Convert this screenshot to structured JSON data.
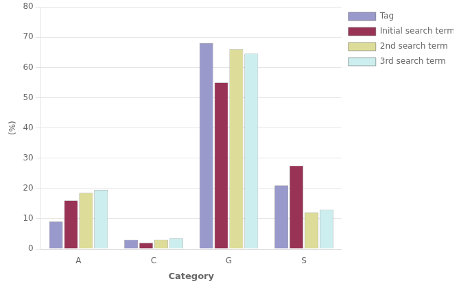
{
  "chart_data": {
    "type": "bar",
    "categories": [
      "A",
      "C",
      "G",
      "S"
    ],
    "series": [
      {
        "name": "Tag",
        "color": "#9999cc",
        "values": [
          9,
          3,
          68,
          21
        ]
      },
      {
        "name": "Initial search term",
        "color": "#993355",
        "values": [
          16,
          2,
          55,
          27.5
        ]
      },
      {
        "name": "2nd search term",
        "color": "#dddd99",
        "values": [
          18.5,
          3,
          66,
          12
        ]
      },
      {
        "name": "3rd search term",
        "color": "#cceeee",
        "values": [
          19.5,
          3.5,
          64.5,
          13
        ]
      }
    ],
    "xlabel": "Category",
    "ylabel": "(%)",
    "ylim": [
      0,
      80
    ],
    "yticks": [
      0,
      10,
      20,
      30,
      40,
      50,
      60,
      70,
      80
    ],
    "grid": true,
    "legend": "right"
  }
}
